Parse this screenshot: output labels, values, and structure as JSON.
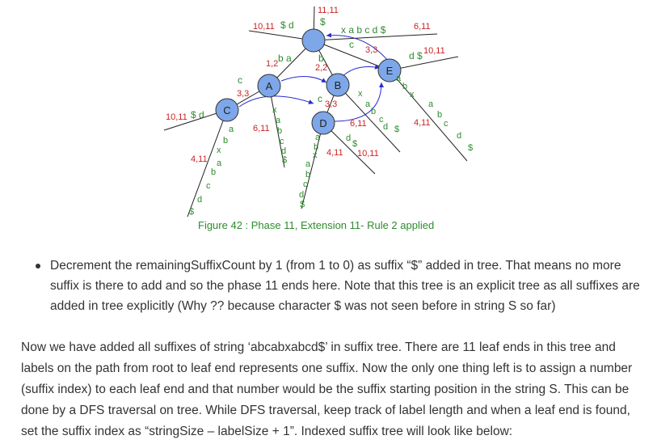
{
  "figure": {
    "caption": "Figure 42 : Phase 11, Extension 11- Rule 2 applied",
    "nodes": {
      "A": "A",
      "B": "B",
      "C": "C",
      "D": "D",
      "E": "E"
    },
    "labels": {
      "root_top_index": "11,11",
      "root_top_dollar": "$",
      "root_left_index": "10,11",
      "root_left_chars": "$ d",
      "root_right_chars": "x a b c d $",
      "root_right_index": "6,11",
      "root_a_index": "1,2",
      "root_a_chars": "b a",
      "root_b_chars": "b",
      "root_b_index": "2,2",
      "root_e_char": "c",
      "root_e_index": "3,3",
      "e_right_chars": "d $",
      "e_right_index": "10,11",
      "e_leaf_index": "4,11",
      "a_c_chars": "c",
      "a_c_index": "3,3",
      "c_left_index": "10,11",
      "c_left_chars": "$ d",
      "c_leaf_index": "4,11",
      "a_leaf_index": "6,11",
      "b_d_chars": "c",
      "b_d_index": "3,3",
      "b_leaf_index": "6,11",
      "d_leaf1_index": "4,11",
      "d_leaf2_index": "10,11"
    }
  },
  "bullet": {
    "text": "Decrement the remainingSuffixCount by 1 (from 1 to 0) as suffix “$” added in tree. That means no more suffix is there to add and so the phase 11 ends here. Note that this tree is an explicit tree as all suffixes are added in tree explicitly (Why ?? because character $ was not seen before in string S so far)"
  },
  "paragraph": {
    "text": "Now we have added all suffixes of string ‘abcabxabcd$’ in suffix tree. There are 11 leaf ends in this tree and labels on the path from root to leaf end represents one suffix. Now the only one thing left is to assign a number (suffix index) to each leaf end and that number would be the suffix starting position in the string S. This can be done by a DFS traversal on tree. While DFS traversal, keep track of label length and when a leaf end is found, set the suffix index as “stringSize – labelSize + 1”. Indexed suffix tree will look like below:"
  },
  "colors": {
    "node_fill": "#7da7e8",
    "edge": "#222222",
    "suffix_link": "#2a2ad0",
    "edge_label": "#2e8b2e",
    "index_label": "#cc2222"
  }
}
